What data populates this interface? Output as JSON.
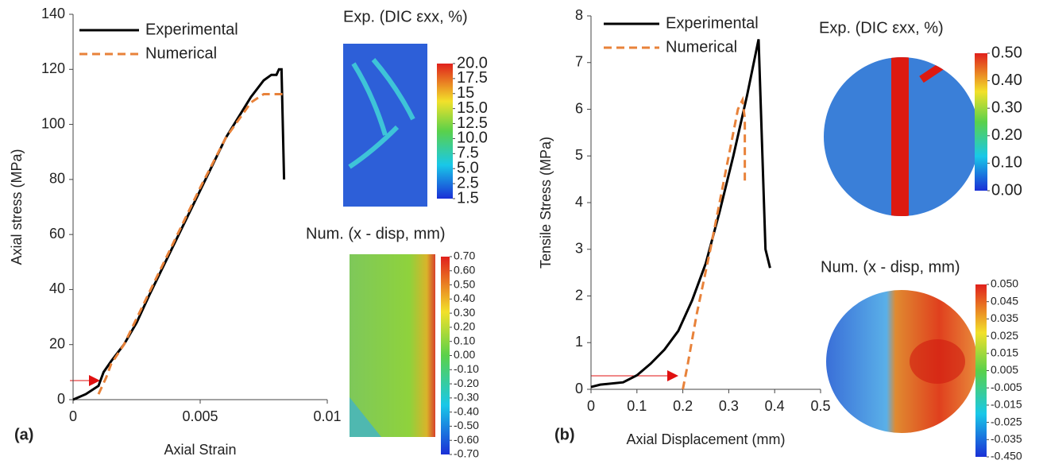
{
  "chart_data": [
    {
      "type": "line",
      "panel_label": "(a)",
      "x_label": "Axial Strain",
      "y_label": "Axial stress (MPa)",
      "xlim": [
        0,
        0.01
      ],
      "xticks": [
        0,
        0.005,
        0.01
      ],
      "ylim": [
        0,
        140
      ],
      "yticks": [
        0,
        20,
        40,
        60,
        80,
        100,
        120,
        140
      ],
      "series": [
        {
          "name": "Experimental",
          "color": "#000000",
          "dash": false,
          "x": [
            0,
            0.0005,
            0.001,
            0.0012,
            0.0015,
            0.002,
            0.0025,
            0.003,
            0.004,
            0.005,
            0.006,
            0.007,
            0.0075,
            0.0078,
            0.008,
            0.0081,
            0.0082,
            0.0083
          ],
          "values": [
            0,
            2,
            5,
            10,
            14,
            20,
            28,
            38,
            57,
            76,
            95,
            110,
            116,
            118,
            118,
            120,
            120,
            80
          ]
        },
        {
          "name": "Numerical",
          "color": "#e8823a",
          "dash": true,
          "x": [
            0.001,
            0.0013,
            0.0015,
            0.002,
            0.003,
            0.004,
            0.005,
            0.006,
            0.007,
            0.0075,
            0.0084
          ],
          "values": [
            2,
            8,
            13,
            20,
            39,
            58,
            77,
            95,
            108,
            111,
            111
          ]
        }
      ],
      "insets": [
        {
          "title": "Exp. (DIC εxx, %)",
          "colorbar": [
            {
              "value": 20,
              "label": "20.0"
            },
            17.5,
            15,
            {
              "value": 15,
              "label": "15.0"
            },
            12.5,
            {
              "value": 10,
              "label": "10.0"
            },
            7.5,
            {
              "value": 5,
              "label": "5.0"
            },
            2.5,
            1.5
          ]
        },
        {
          "title": "Num. (x - disp, mm)",
          "colorbar": [
            {
              "value": 0.7,
              "label": "0.70"
            },
            {
              "value": 0.6,
              "label": "0.60"
            },
            {
              "value": 0.5,
              "label": "0.50"
            },
            {
              "value": 0.4,
              "label": "0.40"
            },
            {
              "value": 0.3,
              "label": "0.30"
            },
            {
              "value": 0.2,
              "label": "0.20"
            },
            {
              "value": 0.1,
              "label": "0.10"
            },
            {
              "value": 0,
              "label": "0.00"
            },
            {
              "value": -0.1,
              "label": "-0.10"
            },
            {
              "value": -0.2,
              "label": "-0.20"
            },
            {
              "value": -0.3,
              "label": "-0.30"
            },
            {
              "value": -0.4,
              "label": "-0.40"
            },
            {
              "value": -0.5,
              "label": "-0.50"
            },
            {
              "value": -0.6,
              "label": "-0.60"
            },
            {
              "value": -0.7,
              "label": "-0.70"
            }
          ]
        }
      ]
    },
    {
      "type": "line",
      "panel_label": "(b)",
      "x_label": "Axial Displacement (mm)",
      "y_label": "Tensile Stress (MPa)",
      "xlim": [
        0,
        0.5
      ],
      "xticks": [
        0,
        0.1,
        0.2,
        0.3,
        0.4,
        0.5
      ],
      "ylim": [
        0,
        8
      ],
      "yticks": [
        0,
        1,
        2,
        3,
        4,
        5,
        6,
        7,
        8
      ],
      "series": [
        {
          "name": "Experimental",
          "color": "#000000",
          "dash": false,
          "x": [
            0,
            0.02,
            0.07,
            0.1,
            0.13,
            0.16,
            0.19,
            0.22,
            0.25,
            0.28,
            0.31,
            0.34,
            0.365,
            0.38,
            0.39
          ],
          "values": [
            0.05,
            0.1,
            0.15,
            0.3,
            0.55,
            0.85,
            1.25,
            1.9,
            2.7,
            3.8,
            5,
            6.3,
            7.5,
            3,
            2.6
          ]
        },
        {
          "name": "Numerical",
          "color": "#e8823a",
          "dash": true,
          "x": [
            0.2,
            0.21,
            0.23,
            0.26,
            0.29,
            0.32,
            0.33,
            0.335,
            0.335
          ],
          "values": [
            0,
            0.5,
            1.6,
            3,
            4.5,
            6,
            6.2,
            5.8,
            4.4
          ]
        }
      ],
      "insets": [
        {
          "title": "Exp. (DIC εxx, %)",
          "colorbar": [
            {
              "value": 0.5,
              "label": "0.50"
            },
            {
              "value": 0.4,
              "label": "0.40"
            },
            {
              "value": 0.3,
              "label": "0.30"
            },
            {
              "value": 0.2,
              "label": "0.20"
            },
            {
              "value": 0.1,
              "label": "0.10"
            },
            {
              "value": 0,
              "label": "0.00"
            }
          ]
        },
        {
          "title": "Num. (x - disp, mm)",
          "colorbar": [
            {
              "value": 0.05,
              "label": "0.050"
            },
            {
              "value": 0.045,
              "label": "0.045"
            },
            {
              "value": 0.035,
              "label": "0.035"
            },
            {
              "value": 0.025,
              "label": "0.025"
            },
            {
              "value": 0.015,
              "label": "0.015"
            },
            {
              "value": 0.005,
              "label": "0.005"
            },
            {
              "value": -0.005,
              "label": "-0.005"
            },
            {
              "value": -0.015,
              "label": "-0.015"
            },
            {
              "value": -0.025,
              "label": "-0.025"
            },
            {
              "value": -0.035,
              "label": "-0.035"
            },
            {
              "value": -0.45,
              "label": "-0.450"
            }
          ]
        }
      ]
    }
  ]
}
